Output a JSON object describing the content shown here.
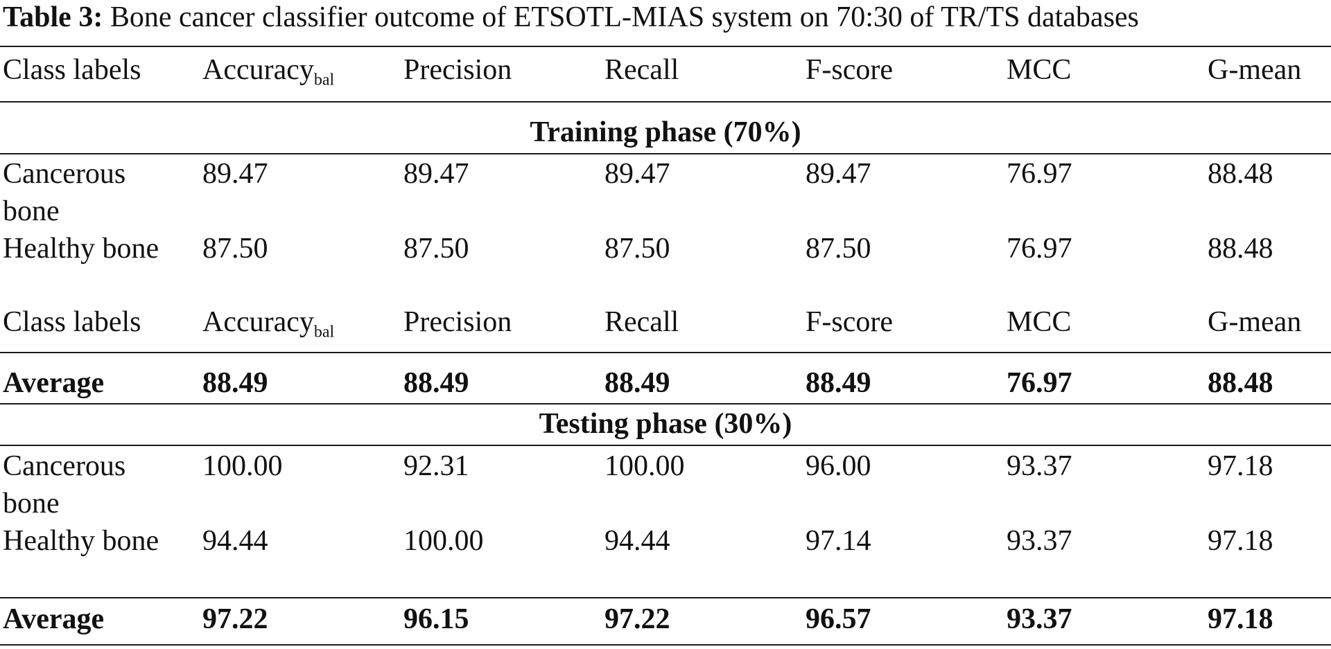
{
  "caption": {
    "label": "Table 3:",
    "text": " Bone cancer classifier outcome of ETSOTL-MIAS system on 70:30 of TR/TS databases"
  },
  "header": {
    "class_labels": "Class labels",
    "accuracy": "Accuracy",
    "accuracy_sub": "bal",
    "precision": "Precision",
    "recall": "Recall",
    "fscore": "F-score",
    "mcc": "MCC",
    "gmean": "G-mean"
  },
  "training": {
    "title": "Training phase (70%)",
    "rows": [
      {
        "label": "Cancerous bone",
        "acc": "89.47",
        "prec": "89.47",
        "rec": "89.47",
        "f": "89.47",
        "mcc": "76.97",
        "g": "88.48"
      },
      {
        "label": "Healthy bone",
        "acc": "87.50",
        "prec": "87.50",
        "rec": "87.50",
        "f": "87.50",
        "mcc": "76.97",
        "g": "88.48"
      }
    ],
    "average": {
      "label": "Average",
      "acc": "88.49",
      "prec": "88.49",
      "rec": "88.49",
      "f": "88.49",
      "mcc": "76.97",
      "g": "88.48"
    }
  },
  "testing": {
    "title": "Testing phase (30%)",
    "rows": [
      {
        "label": "Cancerous bone",
        "acc": "100.00",
        "prec": "92.31",
        "rec": "100.00",
        "f": "96.00",
        "mcc": "93.37",
        "g": "97.18"
      },
      {
        "label": "Healthy bone",
        "acc": "94.44",
        "prec": "100.00",
        "rec": "94.44",
        "f": "97.14",
        "mcc": "93.37",
        "g": "97.18"
      }
    ],
    "average": {
      "label": "Average",
      "acc": "97.22",
      "prec": "96.15",
      "rec": "97.22",
      "f": "96.57",
      "mcc": "93.37",
      "g": "97.18"
    }
  }
}
